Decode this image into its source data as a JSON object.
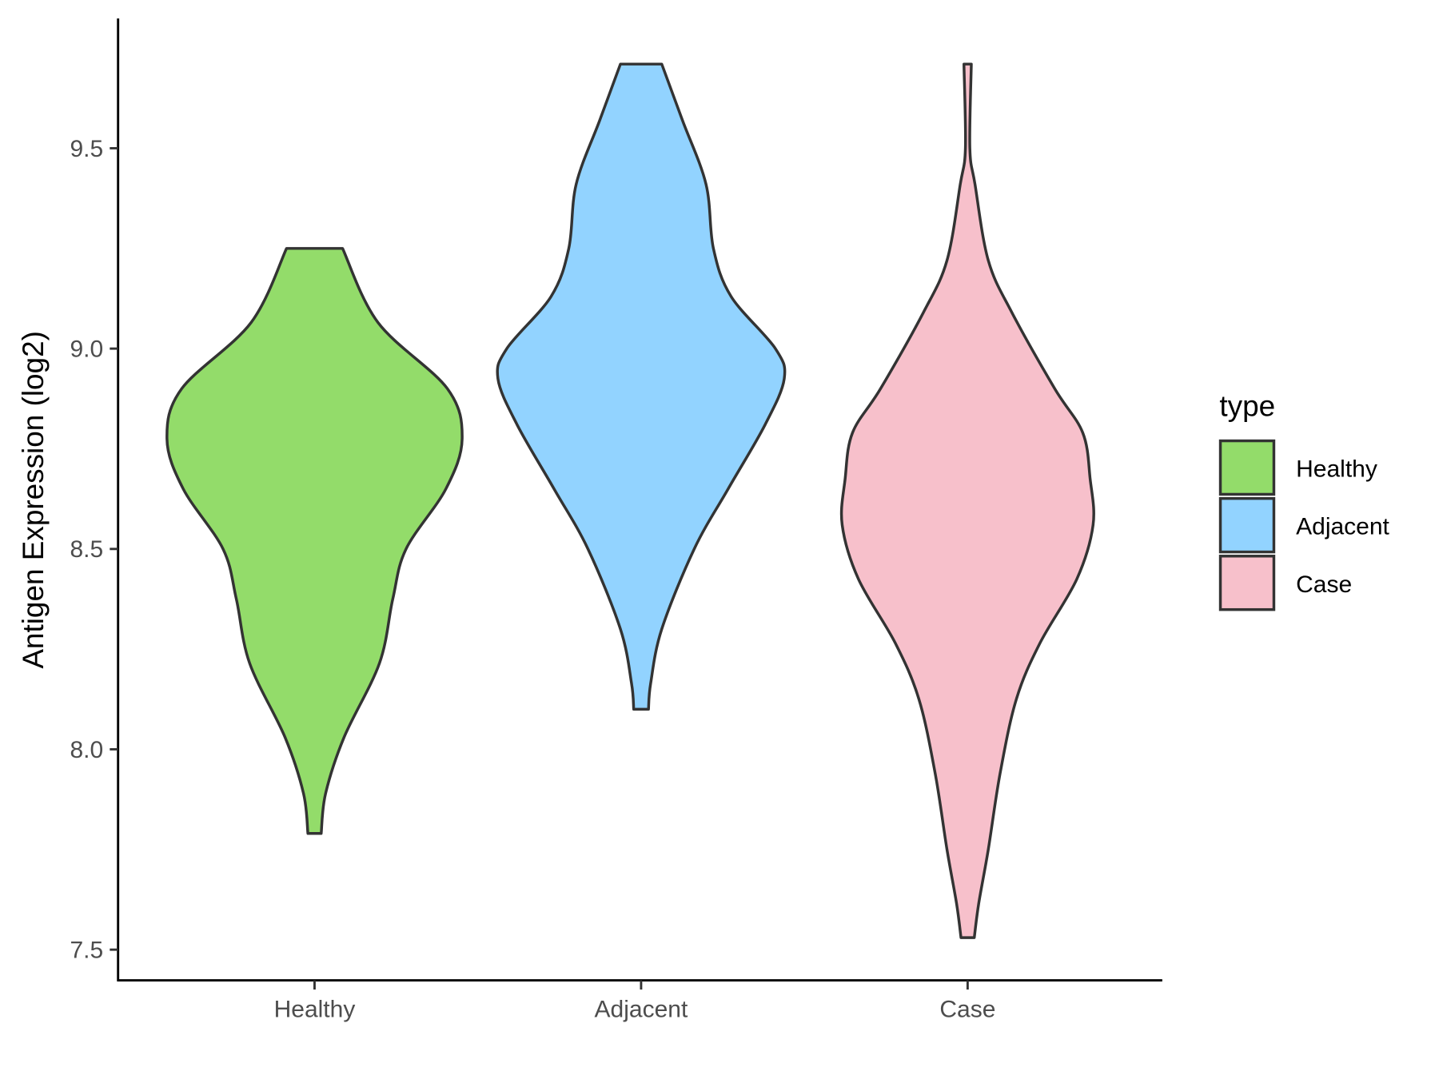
{
  "chart_data": {
    "type": "violin",
    "title": "",
    "xlabel": "",
    "ylabel": "Antigen Expression (log2)",
    "ylim": [
      7.47,
      9.8
    ],
    "yticks": [
      7.5,
      8.0,
      8.5,
      9.0,
      9.5
    ],
    "ytick_labels": [
      "7.5",
      "8.0",
      "8.5",
      "9.0",
      "9.5"
    ],
    "categories": [
      "Healthy",
      "Adjacent",
      "Case"
    ],
    "grid": false,
    "legend": {
      "title": "type",
      "position": "right",
      "entries": [
        "Healthy",
        "Adjacent",
        "Case"
      ]
    },
    "series": [
      {
        "name": "Healthy",
        "color": "#93DC6A",
        "min": 7.79,
        "max": 9.25,
        "profile": [
          [
            9.25,
            0.19
          ],
          [
            9.065,
            0.43
          ],
          [
            8.9,
            0.9
          ],
          [
            8.775,
            1.0
          ],
          [
            8.65,
            0.89
          ],
          [
            8.5,
            0.62
          ],
          [
            8.375,
            0.53
          ],
          [
            8.215,
            0.44
          ],
          [
            8.03,
            0.2
          ],
          [
            7.89,
            0.075
          ],
          [
            7.79,
            0.045
          ]
        ]
      },
      {
        "name": "Adjacent",
        "color": "#92D3FF",
        "min": 8.1,
        "max": 9.71,
        "profile": [
          [
            9.71,
            0.14
          ],
          [
            9.57,
            0.28
          ],
          [
            9.41,
            0.44
          ],
          [
            9.25,
            0.49
          ],
          [
            9.13,
            0.61
          ],
          [
            9.0,
            0.91
          ],
          [
            8.925,
            0.97
          ],
          [
            8.81,
            0.84
          ],
          [
            8.65,
            0.59
          ],
          [
            8.5,
            0.36
          ],
          [
            8.3,
            0.14
          ],
          [
            8.165,
            0.065
          ],
          [
            8.1,
            0.05
          ]
        ]
      },
      {
        "name": "Case",
        "color": "#F7C0CB",
        "min": 7.53,
        "max": 9.71,
        "profile": [
          [
            9.71,
            0.025
          ],
          [
            9.5,
            0.015
          ],
          [
            9.41,
            0.05
          ],
          [
            9.22,
            0.14
          ],
          [
            9.09,
            0.3
          ],
          [
            8.9,
            0.59
          ],
          [
            8.79,
            0.78
          ],
          [
            8.675,
            0.83
          ],
          [
            8.56,
            0.85
          ],
          [
            8.425,
            0.74
          ],
          [
            8.265,
            0.49
          ],
          [
            8.125,
            0.33
          ],
          [
            7.94,
            0.22
          ],
          [
            7.75,
            0.14
          ],
          [
            7.615,
            0.075
          ],
          [
            7.53,
            0.045
          ]
        ]
      }
    ]
  }
}
